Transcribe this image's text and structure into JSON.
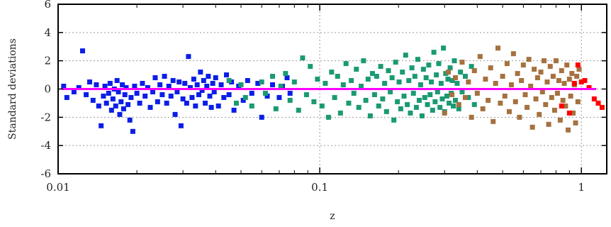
{
  "chart_data": {
    "type": "scatter",
    "xlabel": "z",
    "ylabel": "Standard deviations",
    "xscale": "log",
    "xlim": [
      0.01,
      1.25
    ],
    "ylim": [
      -6,
      6
    ],
    "grid": true,
    "xticks": [
      {
        "value": 0.01,
        "label": "0.01"
      },
      {
        "value": 0.1,
        "label": "0.1"
      },
      {
        "value": 1,
        "label": "1"
      }
    ],
    "yticks": [
      {
        "value": 6,
        "label": "6"
      },
      {
        "value": 4,
        "label": "4"
      },
      {
        "value": 2,
        "label": "2"
      },
      {
        "value": 0,
        "label": "0"
      },
      {
        "value": -2,
        "label": "-2"
      },
      {
        "value": -4,
        "label": "-4"
      },
      {
        "value": -6,
        "label": "-6"
      }
    ],
    "zero_line": {
      "value": 0,
      "color": "#ff00ff"
    },
    "series": [
      {
        "color": "#0a1ee6",
        "points": [
          [
            0.0105,
            0.2
          ],
          [
            0.0108,
            -0.6
          ],
          [
            0.0115,
            -0.2
          ],
          [
            0.012,
            0.1
          ],
          [
            0.0124,
            2.7
          ],
          [
            0.0128,
            -0.4
          ],
          [
            0.0132,
            0.5
          ],
          [
            0.0136,
            -0.8
          ],
          [
            0.014,
            0.3
          ],
          [
            0.0143,
            -1.2
          ],
          [
            0.0146,
            -2.6
          ],
          [
            0.0149,
            -0.5
          ],
          [
            0.0151,
            0.2
          ],
          [
            0.0153,
            -1.0
          ],
          [
            0.0156,
            -0.3
          ],
          [
            0.0158,
            0.4
          ],
          [
            0.016,
            -1.5
          ],
          [
            0.0162,
            -0.7
          ],
          [
            0.0164,
            0.0
          ],
          [
            0.0166,
            -1.2
          ],
          [
            0.0168,
            0.6
          ],
          [
            0.017,
            -0.2
          ],
          [
            0.0172,
            -1.8
          ],
          [
            0.0174,
            -0.9
          ],
          [
            0.0176,
            0.3
          ],
          [
            0.0178,
            -1.4
          ],
          [
            0.018,
            -0.4
          ],
          [
            0.0182,
            0.1
          ],
          [
            0.0185,
            -1.1
          ],
          [
            0.0188,
            -2.2
          ],
          [
            0.019,
            -0.6
          ],
          [
            0.0193,
            -3.0
          ],
          [
            0.0196,
            0.2
          ],
          [
            0.02,
            -0.3
          ],
          [
            0.0205,
            -1.0
          ],
          [
            0.021,
            0.4
          ],
          [
            0.0215,
            -0.5
          ],
          [
            0.022,
            0.1
          ],
          [
            0.0225,
            -1.3
          ],
          [
            0.023,
            -0.2
          ],
          [
            0.0235,
            0.8
          ],
          [
            0.024,
            -0.9
          ],
          [
            0.0245,
            0.3
          ],
          [
            0.025,
            -0.4
          ],
          [
            0.0255,
            0.9
          ],
          [
            0.026,
            -1.0
          ],
          [
            0.0265,
            0.2
          ],
          [
            0.027,
            -0.5
          ],
          [
            0.0275,
            0.6
          ],
          [
            0.028,
            -1.8
          ],
          [
            0.0285,
            -0.2
          ],
          [
            0.029,
            0.5
          ],
          [
            0.0295,
            -2.6
          ],
          [
            0.03,
            -0.7
          ],
          [
            0.0305,
            0.4
          ],
          [
            0.031,
            -1.0
          ],
          [
            0.0315,
            2.3
          ],
          [
            0.032,
            0.1
          ],
          [
            0.0325,
            -0.6
          ],
          [
            0.033,
            0.7
          ],
          [
            0.0335,
            -1.2
          ],
          [
            0.034,
            0.3
          ],
          [
            0.0345,
            -0.4
          ],
          [
            0.035,
            1.2
          ],
          [
            0.0355,
            -0.1
          ],
          [
            0.036,
            0.6
          ],
          [
            0.0365,
            -1.0
          ],
          [
            0.037,
            0.2
          ],
          [
            0.0375,
            0.9
          ],
          [
            0.038,
            -0.5
          ],
          [
            0.0385,
            -1.3
          ],
          [
            0.039,
            0.4
          ],
          [
            0.0395,
            -0.2
          ],
          [
            0.04,
            0.8
          ],
          [
            0.041,
            -1.2
          ],
          [
            0.042,
            0.3
          ],
          [
            0.043,
            -0.6
          ],
          [
            0.044,
            1.0
          ],
          [
            0.045,
            -0.4
          ],
          [
            0.046,
            0.5
          ],
          [
            0.047,
            -1.5
          ],
          [
            0.049,
            0.2
          ],
          [
            0.051,
            -0.8
          ],
          [
            0.053,
            0.6
          ],
          [
            0.055,
            -0.3
          ],
          [
            0.058,
            0.4
          ],
          [
            0.06,
            -2.0
          ],
          [
            0.063,
            -0.5
          ],
          [
            0.066,
            0.3
          ],
          [
            0.07,
            -0.6
          ],
          [
            0.072,
            0.2
          ],
          [
            0.075,
            0.8
          ],
          [
            0.077,
            -0.3
          ]
        ]
      },
      {
        "color": "#1a9a73",
        "points": [
          [
            0.045,
            0.6
          ],
          [
            0.048,
            -1.0
          ],
          [
            0.05,
            0.3
          ],
          [
            0.052,
            -0.6
          ],
          [
            0.055,
            -1.2
          ],
          [
            0.06,
            0.5
          ],
          [
            0.062,
            -0.3
          ],
          [
            0.066,
            0.9
          ],
          [
            0.068,
            -1.4
          ],
          [
            0.071,
            0.2
          ],
          [
            0.074,
            1.1
          ],
          [
            0.077,
            -0.8
          ],
          [
            0.08,
            0.5
          ],
          [
            0.083,
            -1.5
          ],
          [
            0.086,
            2.2
          ],
          [
            0.089,
            -0.4
          ],
          [
            0.092,
            1.6
          ],
          [
            0.095,
            -0.9
          ],
          [
            0.098,
            0.7
          ],
          [
            0.102,
            -1.2
          ],
          [
            0.105,
            0.4
          ],
          [
            0.108,
            -2.0
          ],
          [
            0.111,
            1.2
          ],
          [
            0.114,
            -0.6
          ],
          [
            0.117,
            0.9
          ],
          [
            0.12,
            -1.7
          ],
          [
            0.123,
            0.3
          ],
          [
            0.126,
            1.8
          ],
          [
            0.129,
            -1.0
          ],
          [
            0.132,
            0.6
          ],
          [
            0.135,
            -0.3
          ],
          [
            0.138,
            1.4
          ],
          [
            0.141,
            -1.3
          ],
          [
            0.144,
            0.2
          ],
          [
            0.147,
            2.0
          ],
          [
            0.15,
            -0.8
          ],
          [
            0.153,
            0.7
          ],
          [
            0.156,
            -1.9
          ],
          [
            0.159,
            1.1
          ],
          [
            0.162,
            -0.4
          ],
          [
            0.165,
            0.9
          ],
          [
            0.168,
            -1.2
          ],
          [
            0.171,
            1.6
          ],
          [
            0.174,
            -0.7
          ],
          [
            0.177,
            0.4
          ],
          [
            0.18,
            -1.6
          ],
          [
            0.183,
            1.3
          ],
          [
            0.186,
            -0.2
          ],
          [
            0.189,
            0.8
          ],
          [
            0.192,
            -2.2
          ],
          [
            0.195,
            1.9
          ],
          [
            0.198,
            -0.9
          ],
          [
            0.201,
            0.5
          ],
          [
            0.204,
            -1.4
          ],
          [
            0.207,
            1.2
          ],
          [
            0.21,
            -0.5
          ],
          [
            0.213,
            2.4
          ],
          [
            0.216,
            -1.1
          ],
          [
            0.219,
            0.6
          ],
          [
            0.222,
            -1.7
          ],
          [
            0.225,
            1.5
          ],
          [
            0.228,
            -0.3
          ],
          [
            0.231,
            0.9
          ],
          [
            0.234,
            -1.3
          ],
          [
            0.237,
            2.1
          ],
          [
            0.24,
            -0.8
          ],
          [
            0.243,
            0.3
          ],
          [
            0.246,
            -1.9
          ],
          [
            0.249,
            1.4
          ],
          [
            0.252,
            -0.6
          ],
          [
            0.255,
            0.8
          ],
          [
            0.258,
            -1.1
          ],
          [
            0.261,
            1.7
          ],
          [
            0.264,
            -0.4
          ],
          [
            0.267,
            0.5
          ],
          [
            0.27,
            -1.5
          ],
          [
            0.273,
            2.6
          ],
          [
            0.276,
            -0.9
          ],
          [
            0.279,
            1.0
          ],
          [
            0.282,
            -0.2
          ],
          [
            0.285,
            1.8
          ],
          [
            0.288,
            -1.3
          ],
          [
            0.291,
            0.4
          ],
          [
            0.294,
            -0.7
          ],
          [
            0.297,
            2.9
          ],
          [
            0.3,
            -1.6
          ],
          [
            0.303,
            1.1
          ],
          [
            0.306,
            -0.5
          ],
          [
            0.309,
            0.7
          ],
          [
            0.312,
            -1.0
          ],
          [
            0.315,
            1.5
          ],
          [
            0.318,
            -0.3
          ],
          [
            0.321,
            0.6
          ],
          [
            0.324,
            -1.2
          ],
          [
            0.327,
            2.0
          ],
          [
            0.33,
            -0.8
          ],
          [
            0.335,
            0.4
          ],
          [
            0.34,
            -1.4
          ],
          [
            0.345,
            1.2
          ],
          [
            0.35,
            -0.2
          ],
          [
            0.36,
            0.9
          ],
          [
            0.37,
            -0.6
          ],
          [
            0.38,
            1.6
          ],
          [
            0.39,
            -1.1
          ]
        ]
      },
      {
        "color": "#a5713e",
        "points": [
          [
            0.3,
            -1.7
          ],
          [
            0.31,
            1.2
          ],
          [
            0.32,
            -0.4
          ],
          [
            0.33,
            0.8
          ],
          [
            0.34,
            -1.1
          ],
          [
            0.35,
            1.9
          ],
          [
            0.36,
            -0.6
          ],
          [
            0.37,
            0.5
          ],
          [
            0.38,
            -2.0
          ],
          [
            0.39,
            1.3
          ],
          [
            0.4,
            -0.3
          ],
          [
            0.41,
            2.3
          ],
          [
            0.42,
            -1.4
          ],
          [
            0.43,
            0.7
          ],
          [
            0.44,
            -0.8
          ],
          [
            0.45,
            1.5
          ],
          [
            0.46,
            -2.3
          ],
          [
            0.47,
            0.4
          ],
          [
            0.48,
            2.9
          ],
          [
            0.49,
            -1.0
          ],
          [
            0.5,
            0.9
          ],
          [
            0.51,
            -0.5
          ],
          [
            0.52,
            1.8
          ],
          [
            0.53,
            -1.6
          ],
          [
            0.54,
            0.3
          ],
          [
            0.55,
            2.5
          ],
          [
            0.56,
            -0.9
          ],
          [
            0.57,
            1.1
          ],
          [
            0.58,
            -2.0
          ],
          [
            0.59,
            0.6
          ],
          [
            0.6,
            1.7
          ],
          [
            0.61,
            -0.4
          ],
          [
            0.62,
            -1.3
          ],
          [
            0.63,
            2.1
          ],
          [
            0.64,
            0.2
          ],
          [
            0.65,
            -2.7
          ],
          [
            0.66,
            1.4
          ],
          [
            0.67,
            -0.7
          ],
          [
            0.68,
            0.8
          ],
          [
            0.69,
            -1.8
          ],
          [
            0.7,
            1.2
          ],
          [
            0.71,
            -0.2
          ],
          [
            0.72,
            2.0
          ],
          [
            0.73,
            -1.1
          ],
          [
            0.74,
            0.5
          ],
          [
            0.75,
            -2.5
          ],
          [
            0.76,
            1.6
          ],
          [
            0.77,
            -0.6
          ],
          [
            0.78,
            0.9
          ],
          [
            0.79,
            -1.5
          ],
          [
            0.8,
            2.0
          ],
          [
            0.81,
            -0.3
          ],
          [
            0.82,
            0.6
          ],
          [
            0.83,
            -2.2
          ],
          [
            0.84,
            1.3
          ],
          [
            0.85,
            -0.8
          ],
          [
            0.86,
            0.4
          ],
          [
            0.87,
            -1.2
          ],
          [
            0.88,
            1.7
          ],
          [
            0.89,
            -2.9
          ],
          [
            0.9,
            0.7
          ],
          [
            0.91,
            -0.5
          ],
          [
            0.92,
            1.1
          ],
          [
            0.93,
            -1.7
          ],
          [
            0.94,
            0.3
          ],
          [
            0.95,
            -2.4
          ],
          [
            0.96,
            0.9
          ],
          [
            0.97,
            -0.9
          ],
          [
            0.98,
            1.4
          ]
        ]
      },
      {
        "color": "#ff0000",
        "points": [
          [
            0.84,
            -1.2
          ],
          [
            0.9,
            -1.7
          ],
          [
            0.94,
            0.4
          ],
          [
            0.97,
            1.7
          ],
          [
            1.0,
            0.5
          ],
          [
            1.03,
            0.6
          ],
          [
            1.07,
            0.1
          ],
          [
            1.12,
            -0.7
          ],
          [
            1.16,
            -1.0
          ],
          [
            1.2,
            -1.3
          ]
        ]
      }
    ]
  }
}
